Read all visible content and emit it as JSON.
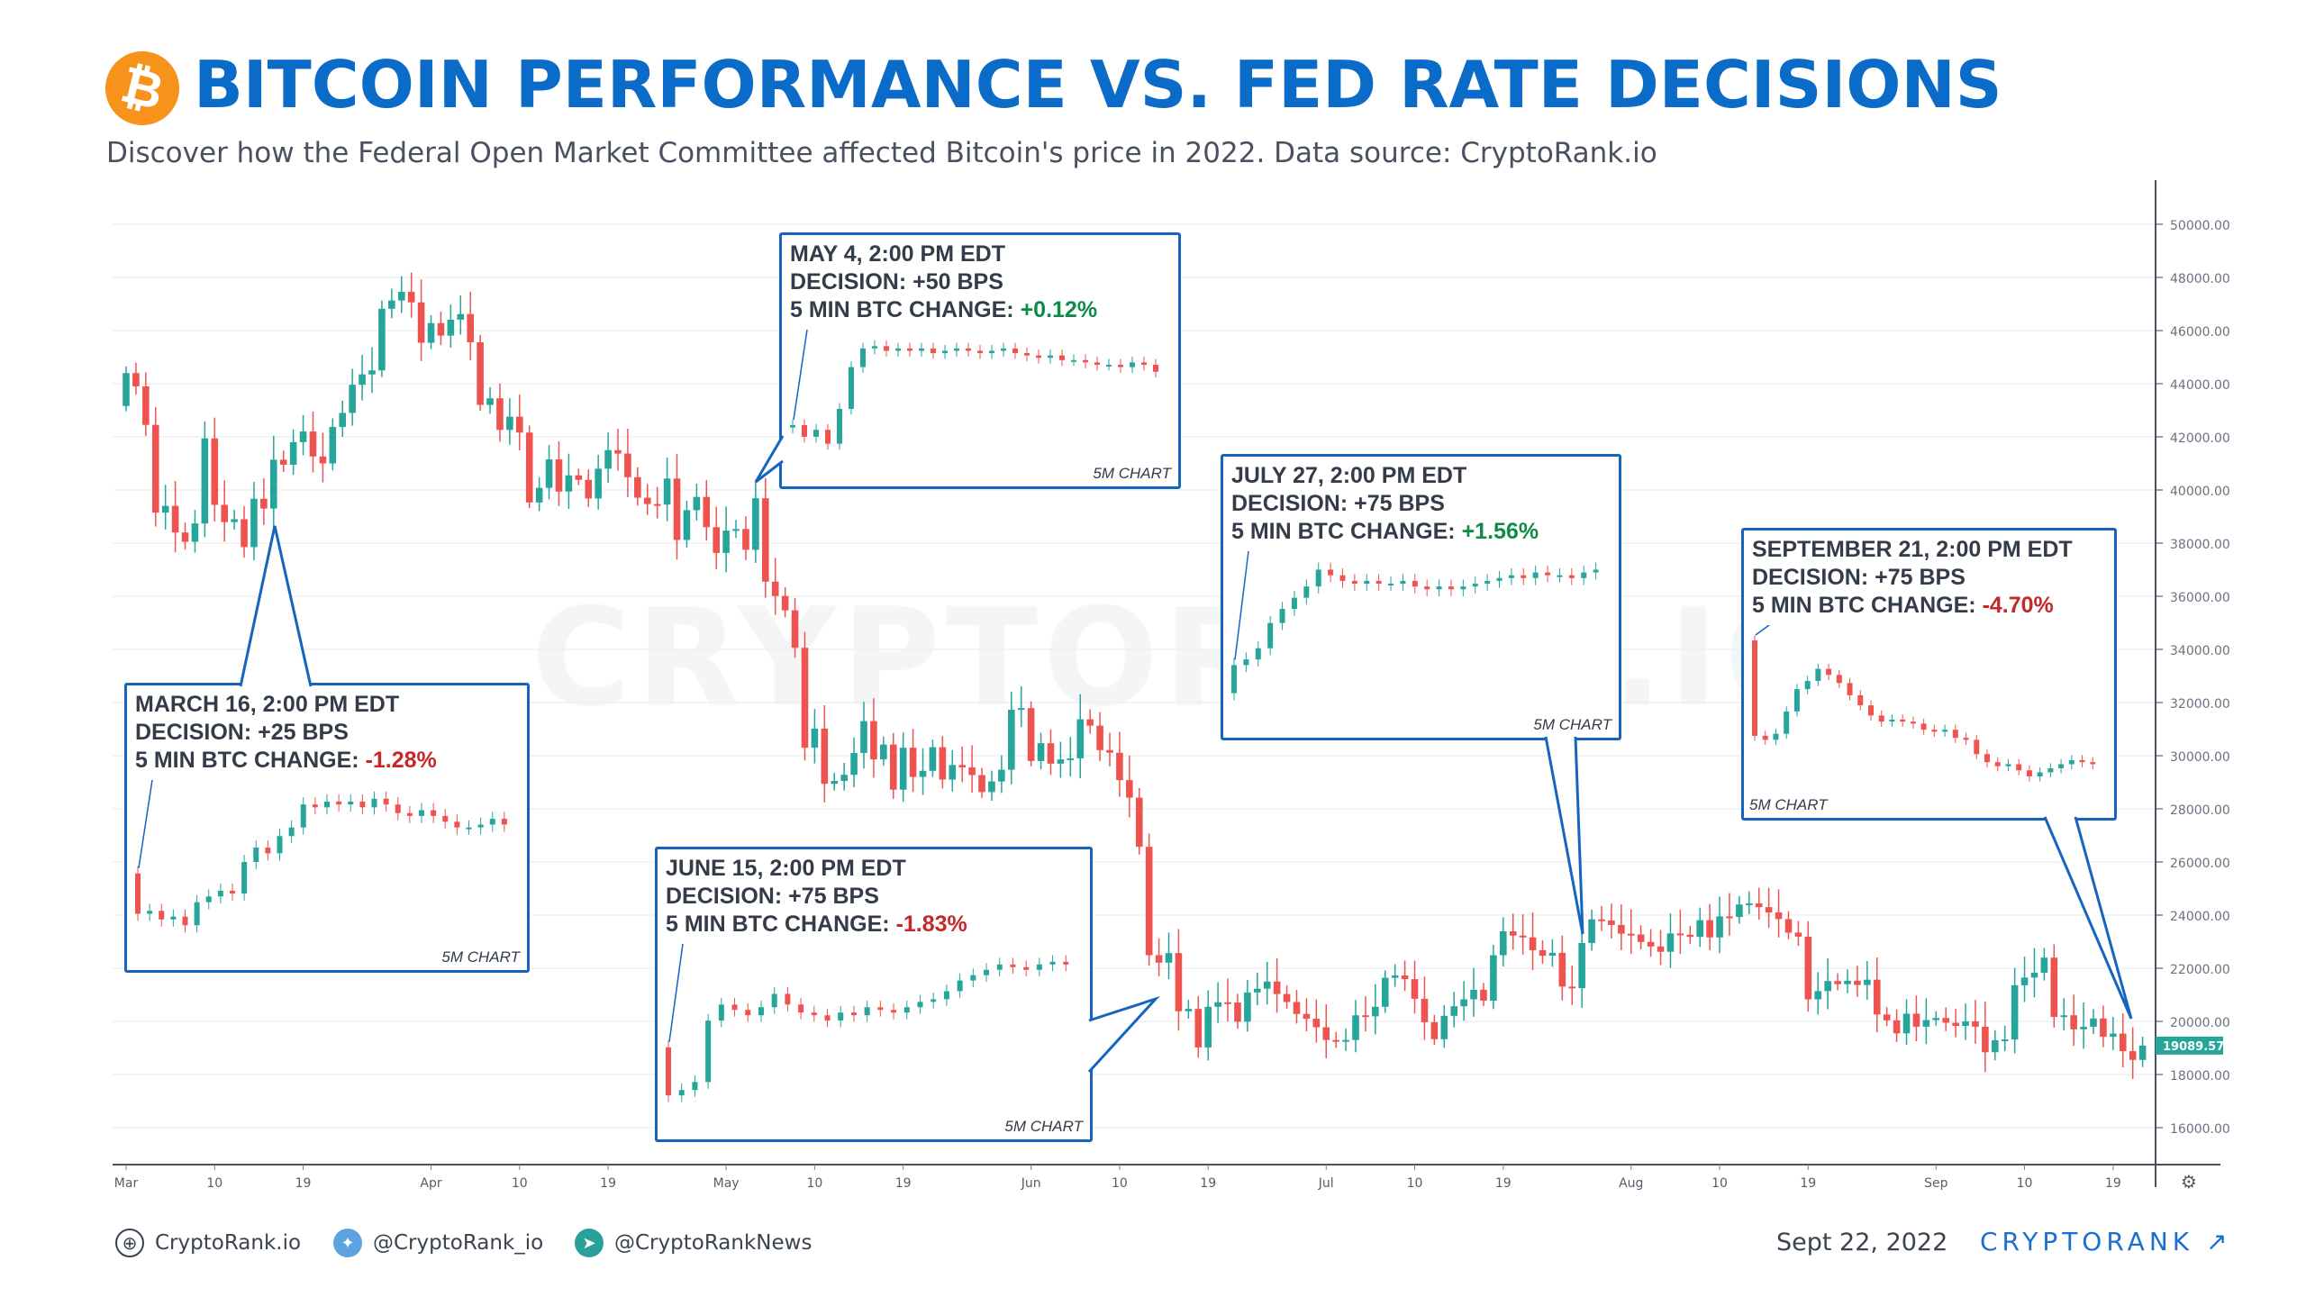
{
  "header": {
    "title": "BITCOIN PERFORMANCE VS. FED RATE DECISIONS",
    "subtitle": "Discover how the Federal Open Market Committee affected Bitcoin's price in 2022. Data source: CryptoRank.io",
    "logo_glyph": "₿"
  },
  "watermark": "CRYPTORANK.IO",
  "colors": {
    "up": "#26a69a",
    "down": "#ef5350",
    "accent": "#1565c0",
    "title": "#0b6bc8",
    "logo": "#f7931a"
  },
  "chart_data": {
    "type": "candlestick",
    "start_date": "2022-03-01",
    "first_open": 43160,
    "closes": [
      44400,
      43900,
      42450,
      39150,
      39400,
      38400,
      38050,
      38740,
      41940,
      39440,
      38790,
      38900,
      37850,
      39670,
      39300,
      41140,
      40950,
      41800,
      42200,
      41260,
      41000,
      42370,
      42900,
      43960,
      44350,
      44500,
      46820,
      47130,
      47460,
      47060,
      45540,
      46280,
      45810,
      46410,
      46620,
      45560,
      43200,
      43450,
      42260,
      42760,
      42160,
      39530,
      40080,
      41150,
      39940,
      40550,
      40380,
      39680,
      40800,
      41500,
      41370,
      40480,
      39710,
      39470,
      39450,
      40430,
      38120,
      39240,
      39740,
      38600,
      37630,
      38470,
      38530,
      37750,
      39690,
      36550,
      36010,
      35470,
      34060,
      30300,
      31020,
      28940,
      29050,
      29280,
      30100,
      31300,
      29860,
      30420,
      28720,
      30300,
      29200,
      29430,
      30320,
      29100,
      29650,
      29560,
      29270,
      28630,
      29030,
      29470,
      31730,
      31790,
      29800,
      30470,
      29700,
      29860,
      29900,
      31370,
      31130,
      30210,
      30110,
      29080,
      28420,
      26570,
      22490,
      22210,
      22570,
      20380,
      20470,
      19020,
      20550,
      20720,
      20710,
      19990,
      21090,
      21230,
      21500,
      21030,
      20730,
      20280,
      20100,
      19780,
      19300,
      19240,
      19300,
      20230,
      20190,
      20550,
      21640,
      21730,
      21590,
      20850,
      19970,
      19330,
      20210,
      20570,
      20830,
      21190,
      20780,
      22490,
      23390,
      23230,
      23160,
      22680,
      22470,
      22580,
      21310,
      21250,
      22950,
      23840,
      23800,
      23630,
      23300,
      23270,
      22990,
      22820,
      22620,
      23310,
      23260,
      23180,
      23810,
      23160,
      23950,
      23930,
      24400,
      24440,
      24300,
      24100,
      23850,
      23340,
      23190,
      20830,
      21140,
      21520,
      21400,
      21530,
      21370,
      21570,
      20260,
      20040,
      19550,
      20290,
      19800,
      20050,
      20130,
      19950,
      19830,
      20000,
      19800,
      18840,
      19290,
      19320,
      21360,
      21650,
      21830,
      22400,
      20170,
      20230,
      19700,
      19800,
      20110,
      19420,
      19540,
      18880,
      18550,
      19089.57
    ],
    "ylim": [
      15000,
      51000
    ],
    "y_ticks": [
      "50000.00",
      "48000.00",
      "46000.00",
      "44000.00",
      "42000.00",
      "40000.00",
      "38000.00",
      "36000.00",
      "34000.00",
      "32000.00",
      "30000.00",
      "28000.00",
      "26000.00",
      "24000.00",
      "22000.00",
      "20000.00",
      "18000.00",
      "16000.00"
    ],
    "x_ticks": [
      {
        "label": "Mar",
        "day": 0
      },
      {
        "label": "10",
        "day": 9
      },
      {
        "label": "19",
        "day": 18
      },
      {
        "label": "Apr",
        "day": 31
      },
      {
        "label": "10",
        "day": 40
      },
      {
        "label": "19",
        "day": 49
      },
      {
        "label": "May",
        "day": 61
      },
      {
        "label": "10",
        "day": 70
      },
      {
        "label": "19",
        "day": 79
      },
      {
        "label": "Jun",
        "day": 92
      },
      {
        "label": "10",
        "day": 101
      },
      {
        "label": "19",
        "day": 110
      },
      {
        "label": "Jul",
        "day": 122
      },
      {
        "label": "10",
        "day": 131
      },
      {
        "label": "19",
        "day": 140
      },
      {
        "label": "Aug",
        "day": 153
      },
      {
        "label": "10",
        "day": 162
      },
      {
        "label": "19",
        "day": 171
      },
      {
        "label": "Sep",
        "day": 184
      },
      {
        "label": "10",
        "day": 193
      },
      {
        "label": "19",
        "day": 202
      }
    ],
    "last_price": "19089.57",
    "grid": true
  },
  "annotations": [
    {
      "date": "MARCH 16, 2:00 PM EDT",
      "decision": "DECISION: +25 BPS",
      "change_label": "5 MIN BTC CHANGE:",
      "change": "-1.28%",
      "sign": "neg",
      "tag": "5M CHART",
      "closes": [
        98.6,
        98.7,
        98.4,
        98.5,
        98.2,
        99.0,
        99.2,
        99.4,
        99.3,
        100.4,
        100.9,
        100.7,
        101.3,
        101.6,
        102.4,
        102.3,
        102.5,
        102.4,
        102.5,
        102.3,
        102.6,
        102.4,
        102.1,
        102.0,
        102.2,
        102.0,
        101.8,
        101.6,
        101.6,
        101.7,
        101.9,
        101.7
      ],
      "first_open": 100
    },
    {
      "date": "MAY 4, 2:00 PM EDT",
      "decision": "DECISION: +50 BPS",
      "change_label": "5 MIN BTC CHANGE:",
      "change": "+0.12%",
      "sign": "pos",
      "tag": "5M CHART",
      "closes": [
        100.1,
        99.6,
        99.9,
        99.3,
        100.8,
        102.6,
        103.4,
        103.5,
        103.3,
        103.4,
        103.3,
        103.4,
        103.2,
        103.3,
        103.4,
        103.3,
        103.2,
        103.3,
        103.4,
        103.2,
        103.1,
        103.0,
        103.1,
        102.9,
        102.9,
        102.8,
        102.7,
        102.7,
        102.6,
        102.8,
        102.7,
        102.4
      ],
      "first_open": 100
    },
    {
      "date": "JUNE 15, 2:00 PM EDT",
      "decision": "DECISION: +75 BPS",
      "change_label": "5 MIN BTC CHANGE:",
      "change": "-1.83%",
      "sign": "neg",
      "tag": "5M CHART",
      "closes": [
        98.2,
        98.4,
        98.7,
        101.0,
        101.6,
        101.4,
        101.2,
        101.5,
        102.0,
        101.6,
        101.3,
        101.2,
        101.0,
        101.3,
        101.2,
        101.5,
        101.4,
        101.3,
        101.5,
        101.7,
        101.8,
        102.1,
        102.5,
        102.7,
        102.9,
        103.1,
        103.0,
        102.9,
        103.1,
        103.2,
        103.1
      ],
      "first_open": 100
    },
    {
      "date": "JULY 27, 2:00 PM EDT",
      "decision": "DECISION: +75 BPS",
      "change_label": "5 MIN BTC CHANGE:",
      "change": "+1.56%",
      "sign": "pos",
      "tag": "5M CHART",
      "closes": [
        101.0,
        101.2,
        101.6,
        102.5,
        103.0,
        103.4,
        103.8,
        104.4,
        104.2,
        104.0,
        103.9,
        104.0,
        103.9,
        103.9,
        104.0,
        103.8,
        103.7,
        103.8,
        103.7,
        103.8,
        103.9,
        104.0,
        104.1,
        104.2,
        104.1,
        104.3,
        104.2,
        104.2,
        104.1,
        104.3,
        104.4
      ],
      "first_open": 100
    },
    {
      "date": "SEPTEMBER 21, 2:00 PM EDT",
      "decision": "DECISION: +75 BPS",
      "change_label": "5 MIN BTC CHANGE:",
      "change": "-4.70%",
      "sign": "neg",
      "tag": "5M CHART",
      "closes": [
        95.3,
        95.1,
        95.4,
        96.5,
        97.6,
        98.0,
        98.6,
        98.3,
        97.9,
        97.3,
        96.8,
        96.3,
        96.0,
        96.1,
        96.0,
        95.9,
        95.6,
        95.5,
        95.6,
        95.2,
        95.1,
        94.4,
        94.0,
        93.8,
        93.9,
        93.6,
        93.3,
        93.5,
        93.7,
        93.9,
        94.1,
        94.0,
        93.9
      ],
      "first_open": 100
    }
  ],
  "footer": {
    "website": "CryptoRank.io",
    "twitter": "@CryptoRank_io",
    "telegram": "@CryptoRankNews",
    "date": "Sept 22, 2022",
    "brand": "CRYPTORANK ↗"
  }
}
